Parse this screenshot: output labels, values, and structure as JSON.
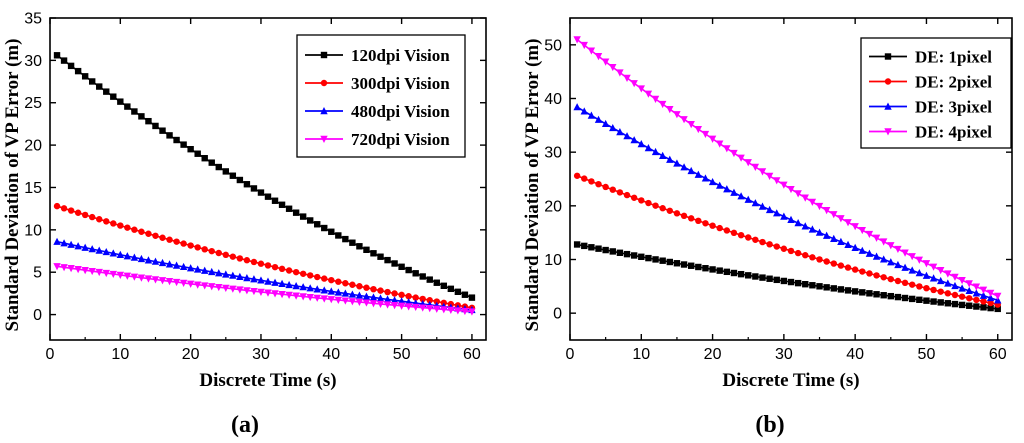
{
  "chart_data": [
    {
      "type": "line",
      "caption": "a",
      "xlabel": "Discrete Time (s)",
      "ylabel": "Standard Deviation of VP Error (m)",
      "xlim": [
        0,
        62
      ],
      "ylim": [
        -3,
        35
      ],
      "xticks": [
        0,
        10,
        20,
        30,
        40,
        50,
        60
      ],
      "yticks": [
        0,
        5,
        10,
        15,
        20,
        25,
        30,
        35
      ],
      "x": {
        "start": 1,
        "end": 60,
        "step": 1
      },
      "legend_position": "top-right",
      "series": [
        {
          "name": "120dpi Vision",
          "color": "#000000",
          "marker": "square",
          "start": 30.6,
          "end": 2.0,
          "curvature": 0.3
        },
        {
          "name": "300dpi Vision",
          "color": "#ff0000",
          "marker": "circle",
          "start": 12.8,
          "end": 0.8,
          "curvature": 0.3
        },
        {
          "name": "480dpi Vision",
          "color": "#0000ff",
          "marker": "triangle-up",
          "start": 8.6,
          "end": 0.55,
          "curvature": 0.3
        },
        {
          "name": "720dpi Vision",
          "color": "#ff00ff",
          "marker": "triangle-down",
          "start": 5.7,
          "end": 0.35,
          "curvature": 0.3
        }
      ]
    },
    {
      "type": "line",
      "caption": "b",
      "xlabel": "Discrete Time (s)",
      "ylabel": "Standard Deviation of VP Error (m)",
      "xlim": [
        0,
        62
      ],
      "ylim": [
        -5,
        55
      ],
      "xticks": [
        0,
        10,
        20,
        30,
        40,
        50,
        60
      ],
      "yticks": [
        0,
        10,
        20,
        30,
        40,
        50
      ],
      "x": {
        "start": 1,
        "end": 60,
        "step": 1
      },
      "legend_position": "top-right",
      "series": [
        {
          "name": "DE: 1pixel",
          "color": "#000000",
          "marker": "square",
          "start": 12.8,
          "end": 0.8,
          "curvature": 0.3
        },
        {
          "name": "DE: 2pixel",
          "color": "#ff0000",
          "marker": "circle",
          "start": 25.6,
          "end": 1.6,
          "curvature": 0.3
        },
        {
          "name": "DE: 3pixel",
          "color": "#0000ff",
          "marker": "triangle-up",
          "start": 38.4,
          "end": 2.4,
          "curvature": 0.3
        },
        {
          "name": "DE: 4pixel",
          "color": "#ff00ff",
          "marker": "triangle-down",
          "start": 51.0,
          "end": 3.2,
          "curvature": 0.3
        }
      ]
    }
  ]
}
